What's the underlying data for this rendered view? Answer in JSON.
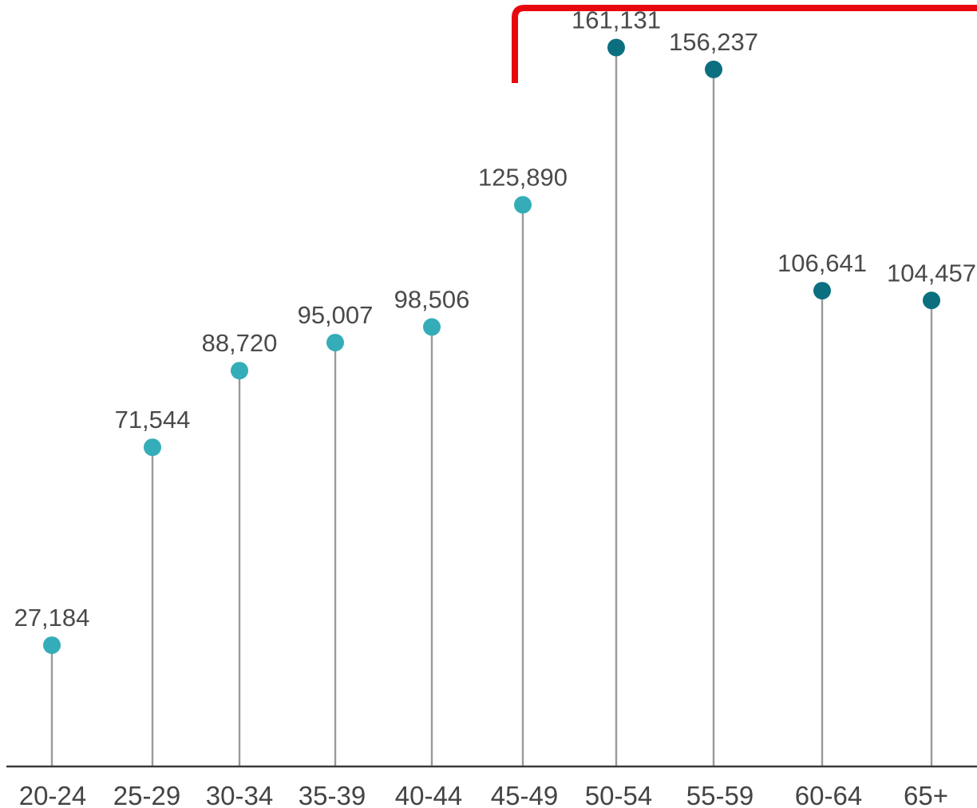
{
  "chart_data": {
    "type": "lollipop",
    "categories": [
      "20-24",
      "25-29",
      "30-34",
      "35-39",
      "40-44",
      "45-49",
      "50-54",
      "55-59",
      "60-64",
      "65+"
    ],
    "values": [
      27184,
      71544,
      88720,
      95007,
      98506,
      125890,
      161131,
      156237,
      106641,
      104457
    ],
    "data_labels": [
      "27,184",
      "71,544",
      "88,720",
      "95,007",
      "98,506",
      "125,890",
      "161,131",
      "156,237",
      "106,641",
      "104,457"
    ],
    "highlighted_categories": [
      "50-54",
      "55-59",
      "60-64",
      "65+"
    ],
    "title": "",
    "xlabel": "",
    "ylabel": "",
    "ylim": [
      0,
      170000
    ],
    "grid": false,
    "legend": "none"
  },
  "colors": {
    "marker_light": "#35adb8",
    "marker_dark": "#0b6f80",
    "annotation_bracket": "#e8070d"
  }
}
